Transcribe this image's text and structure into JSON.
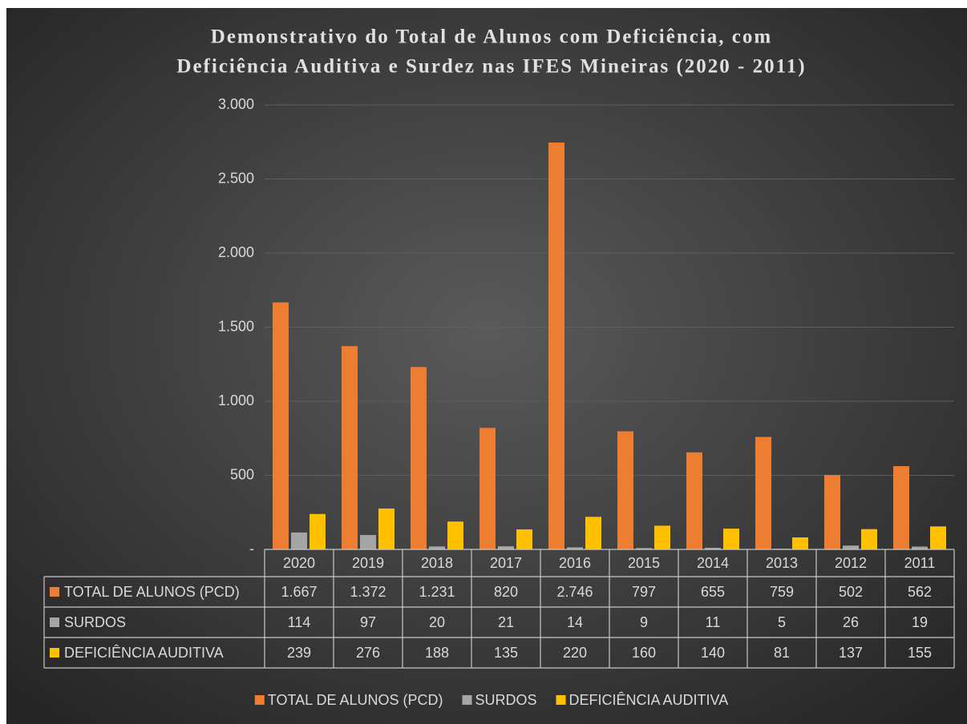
{
  "chart_data": {
    "type": "bar",
    "title": [
      "Demonstrativo do Total de Alunos com Deficiência, com",
      "Deficiência Auditiva e Surdez nas IFES Mineiras (2020 - 2011)"
    ],
    "categories": [
      "2020",
      "2019",
      "2018",
      "2017",
      "2016",
      "2015",
      "2014",
      "2013",
      "2012",
      "2011"
    ],
    "series": [
      {
        "name": "TOTAL DE ALUNOS (PCD)",
        "color": "#ED7D31",
        "values": [
          1667,
          1372,
          1231,
          820,
          2746,
          797,
          655,
          759,
          502,
          562
        ],
        "value_labels": [
          "1.667",
          "1.372",
          "1.231",
          "820",
          "2.746",
          "797",
          "655",
          "759",
          "502",
          "562"
        ]
      },
      {
        "name": "SURDOS",
        "color": "#A5A5A5",
        "values": [
          114,
          97,
          20,
          21,
          14,
          9,
          11,
          5,
          26,
          19
        ]
      },
      {
        "name": "DEFICIÊNCIA AUDITIVA",
        "color": "#FFC000",
        "values": [
          239,
          276,
          188,
          135,
          220,
          160,
          140,
          81,
          137,
          155
        ]
      }
    ],
    "ylim": [
      0,
      3000
    ],
    "yticks": [
      {
        "value": 0,
        "label": "-"
      },
      500,
      {
        "value": 1000,
        "label": "1.000"
      },
      {
        "value": 1500,
        "label": "1.500"
      },
      {
        "value": 2000,
        "label": "2.000"
      },
      {
        "value": 2500,
        "label": "2.500"
      },
      {
        "value": 3000,
        "label": "3.000"
      }
    ],
    "grid": true,
    "legend": "bottom"
  }
}
